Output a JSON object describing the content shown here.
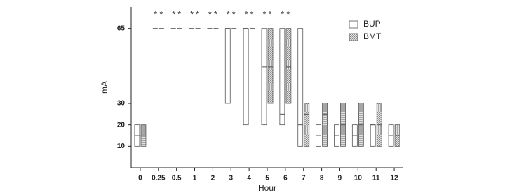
{
  "chart_data": {
    "type": "range-box",
    "x_label": "Hour",
    "y_label": "mA",
    "categories": [
      "0",
      "0.25",
      "0.5",
      "1",
      "2",
      "3",
      "4",
      "5",
      "6",
      "7",
      "8",
      "9",
      "10",
      "11",
      "12"
    ],
    "annotations": [
      null,
      "* *",
      "* *",
      "* *",
      "* *",
      "* *",
      "* *",
      "* *",
      "* *",
      null,
      null,
      null,
      null,
      null,
      null
    ],
    "annotation_y": 72,
    "series": [
      {
        "name": "BUP",
        "color": "#ffffff",
        "pattern": false,
        "min": [
          10,
          65,
          65,
          65,
          65,
          30,
          20,
          20,
          20,
          10,
          10,
          10,
          10,
          10,
          10
        ],
        "median": [
          15,
          65,
          65,
          65,
          65,
          65,
          65,
          47,
          25,
          20,
          15,
          15,
          15,
          20,
          15
        ],
        "max": [
          20,
          65,
          65,
          65,
          65,
          65,
          65,
          65,
          65,
          65,
          20,
          20,
          20,
          20,
          20
        ]
      },
      {
        "name": "BMT",
        "color": "#bdbdbd",
        "pattern": true,
        "min": [
          10,
          65,
          65,
          65,
          65,
          65,
          65,
          30,
          30,
          10,
          10,
          10,
          10,
          10,
          10
        ],
        "median": [
          15,
          65,
          65,
          65,
          65,
          65,
          65,
          47,
          47,
          25,
          25,
          20,
          20,
          20,
          15
        ],
        "max": [
          20,
          65,
          65,
          65,
          65,
          65,
          65,
          65,
          65,
          30,
          30,
          30,
          30,
          30,
          20
        ]
      }
    ],
    "ylim": [
      0,
      75
    ],
    "yticks": [
      10,
      20,
      30,
      65
    ],
    "legend": "upper-right"
  }
}
